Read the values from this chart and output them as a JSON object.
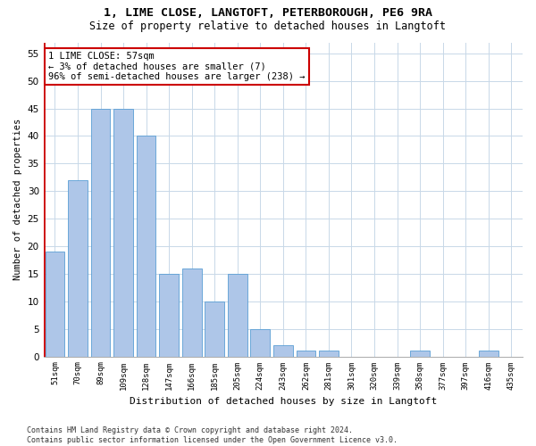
{
  "title1": "1, LIME CLOSE, LANGTOFT, PETERBOROUGH, PE6 9RA",
  "title2": "Size of property relative to detached houses in Langtoft",
  "xlabel": "Distribution of detached houses by size in Langtoft",
  "ylabel": "Number of detached properties",
  "categories": [
    "51sqm",
    "70sqm",
    "89sqm",
    "109sqm",
    "128sqm",
    "147sqm",
    "166sqm",
    "185sqm",
    "205sqm",
    "224sqm",
    "243sqm",
    "262sqm",
    "281sqm",
    "301sqm",
    "320sqm",
    "339sqm",
    "358sqm",
    "377sqm",
    "397sqm",
    "416sqm",
    "435sqm"
  ],
  "values": [
    19,
    32,
    45,
    45,
    40,
    15,
    16,
    10,
    15,
    5,
    2,
    1,
    1,
    0,
    0,
    0,
    1,
    0,
    0,
    1,
    0
  ],
  "bar_color": "#aec6e8",
  "bar_edge_color": "#5a9fd4",
  "annotation_text": "1 LIME CLOSE: 57sqm\n← 3% of detached houses are smaller (7)\n96% of semi-detached houses are larger (238) →",
  "annotation_box_color": "#ffffff",
  "annotation_box_edge_color": "#cc0000",
  "red_line_color": "#cc0000",
  "ylim": [
    0,
    57
  ],
  "yticks": [
    0,
    5,
    10,
    15,
    20,
    25,
    30,
    35,
    40,
    45,
    50,
    55
  ],
  "footnote": "Contains HM Land Registry data © Crown copyright and database right 2024.\nContains public sector information licensed under the Open Government Licence v3.0.",
  "bg_color": "#ffffff",
  "grid_color": "#c8d8e8"
}
